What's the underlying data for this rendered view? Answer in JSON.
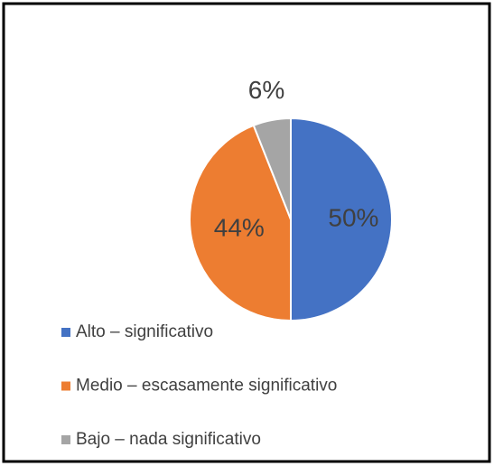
{
  "chart_data": {
    "type": "pie",
    "categories": [
      "Alto – significativo",
      "Medio – escasamente significativo",
      "Bajo – nada significativo"
    ],
    "values": [
      50,
      44,
      6
    ],
    "value_labels": [
      "50%",
      "44%",
      "6%"
    ],
    "colors": [
      "#4472c4",
      "#ed7d31",
      "#a5a5a5"
    ],
    "legend": "bottom"
  }
}
